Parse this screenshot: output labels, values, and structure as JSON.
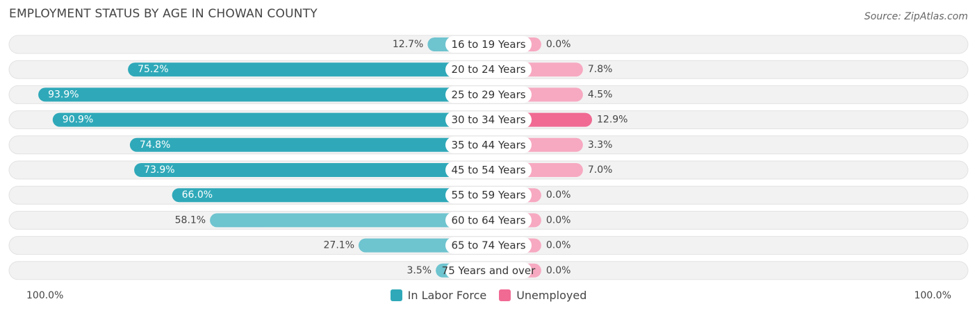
{
  "title": "EMPLOYMENT STATUS BY AGE IN CHOWAN COUNTY",
  "source": "Source: ZipAtlas.com",
  "colors": {
    "labor": "#2fa9b9",
    "labor_light": "#6ec4cf",
    "unemployed": "#f06a93",
    "unemployed_light": "#f7a9c1",
    "row_bg": "#f2f2f2",
    "row_border": "#e2e2e2"
  },
  "legend": {
    "labor_label": "In Labor Force",
    "unemployed_label": "Unemployed"
  },
  "axis": {
    "left_label": "100.0%",
    "right_label": "100.0%"
  },
  "chart_data": {
    "type": "bar",
    "orientation": "horizontal-diverging",
    "title": "EMPLOYMENT STATUS BY AGE IN CHOWAN COUNTY",
    "xlim": [
      -100,
      100
    ],
    "categories": [
      "16 to 19 Years",
      "20 to 24 Years",
      "25 to 29 Years",
      "30 to 34 Years",
      "35 to 44 Years",
      "45 to 54 Years",
      "55 to 59 Years",
      "60 to 64 Years",
      "65 to 74 Years",
      "75 Years and over"
    ],
    "series": [
      {
        "name": "In Labor Force",
        "values": [
          12.7,
          75.2,
          93.9,
          90.9,
          74.8,
          73.9,
          66.0,
          58.1,
          27.1,
          3.5
        ],
        "labels": [
          "12.7%",
          "75.2%",
          "93.9%",
          "90.9%",
          "74.8%",
          "73.9%",
          "66.0%",
          "58.1%",
          "27.1%",
          "3.5%"
        ]
      },
      {
        "name": "Unemployed",
        "values": [
          0.0,
          7.8,
          4.5,
          12.9,
          3.3,
          7.0,
          0.0,
          0.0,
          0.0,
          0.0
        ],
        "labels": [
          "0.0%",
          "7.8%",
          "4.5%",
          "12.9%",
          "3.3%",
          "7.0%",
          "0.0%",
          "0.0%",
          "0.0%",
          "0.0%"
        ]
      }
    ]
  }
}
